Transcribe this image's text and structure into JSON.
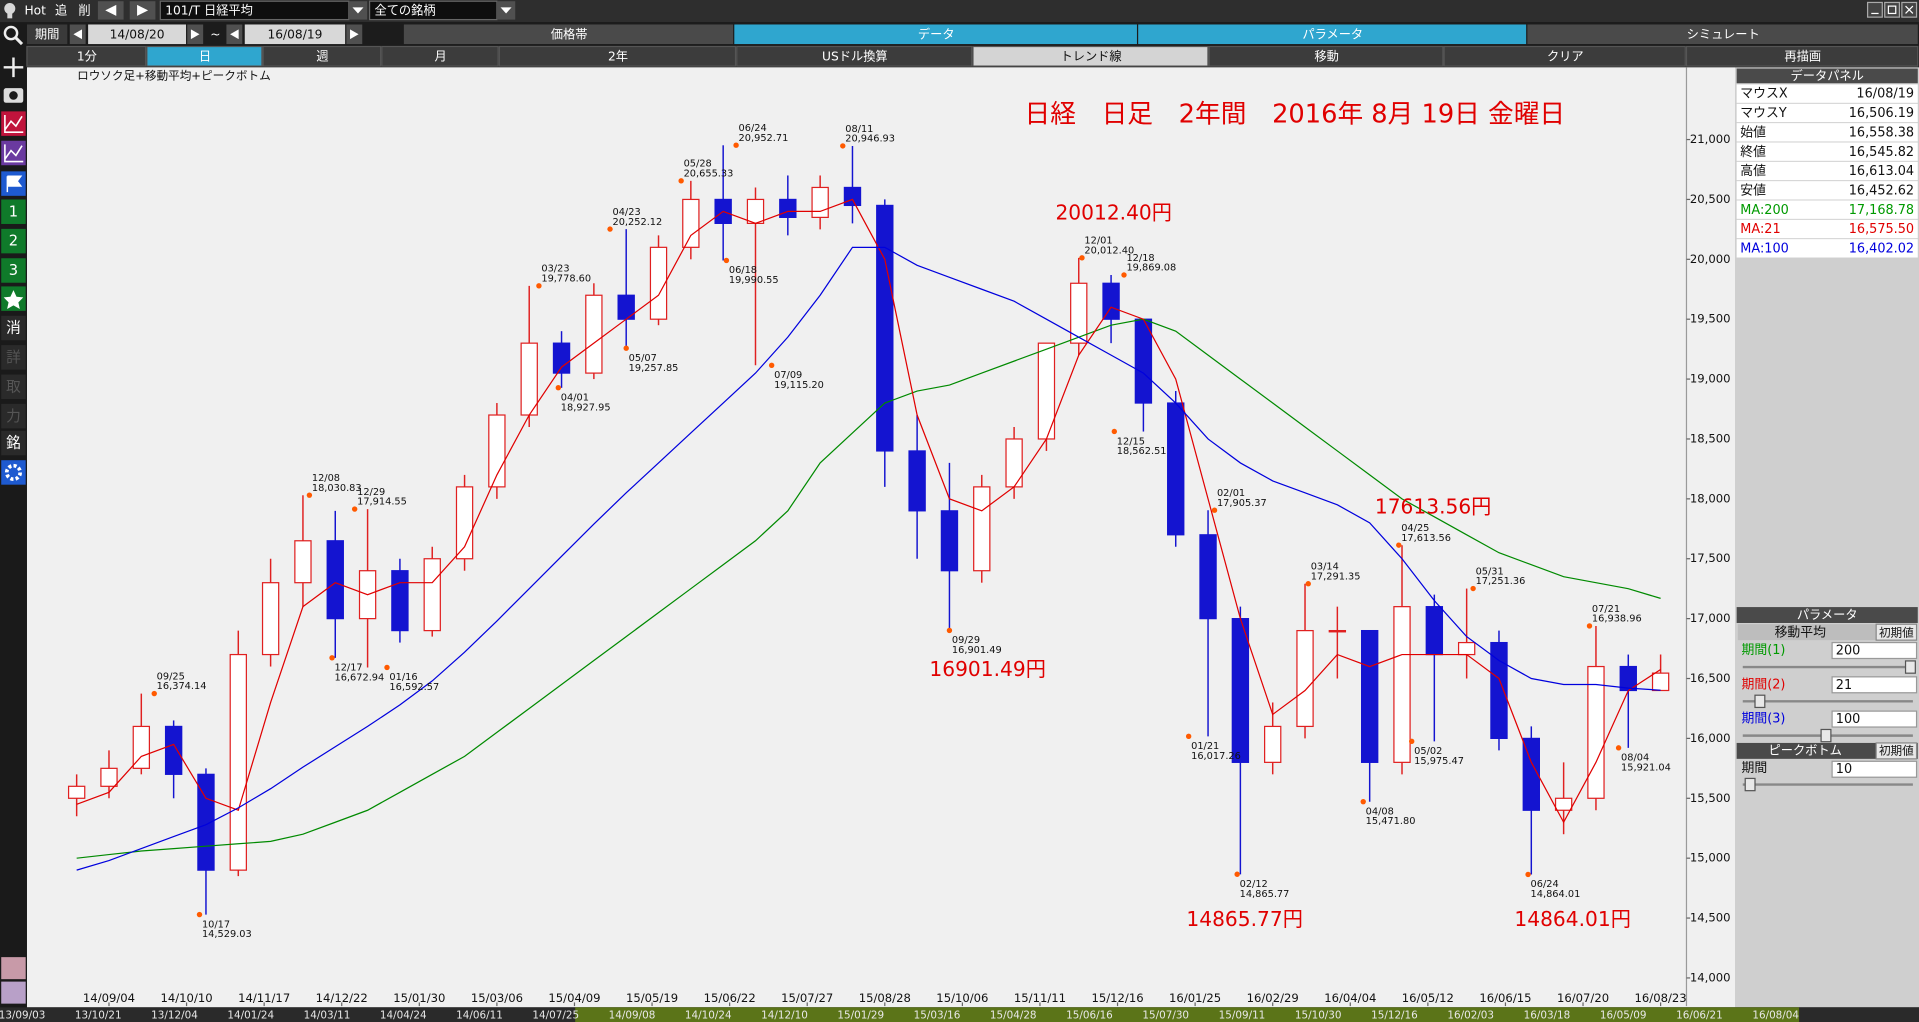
{
  "toolbar": {
    "hot": "Hot",
    "add": "追",
    "delete": "削",
    "symbol": "101/T 日経平均",
    "universe": "全ての銘柄"
  },
  "period": {
    "label": "期間",
    "from": "14/08/20",
    "sep": "~",
    "to": "16/08/19"
  },
  "tabs": [
    "価格帯",
    "データ",
    "パラメータ",
    "シミュレート"
  ],
  "buttons": [
    "1分",
    "日",
    "週",
    "月",
    "2年",
    "USドル換算",
    "トレンド線",
    "移動",
    "クリア",
    "再描画"
  ],
  "sidebar": [
    "1",
    "2",
    "3",
    "消",
    "詳",
    "取",
    "力",
    "銘"
  ],
  "chart_data": {
    "type": "candlestick",
    "title": "日経　日足　2年間　2016年 8月 19日 金曜日",
    "subtitle": "ロウソク足+移動平均+ピークボトム",
    "x": [
      0,
      10,
      20,
      30,
      40,
      50,
      60,
      70,
      80,
      90,
      100,
      110,
      120,
      130,
      140,
      150,
      160,
      170,
      180,
      190,
      200,
      210,
      220,
      230,
      240,
      250,
      260,
      270,
      280,
      290,
      300,
      310,
      320,
      330,
      340,
      350,
      360,
      370,
      380,
      390,
      400,
      410,
      420,
      430,
      440,
      450,
      460,
      470,
      480,
      490
    ],
    "open": [
      15500,
      15600,
      15750,
      16100,
      15700,
      14900,
      16700,
      17300,
      17650,
      17000,
      17400,
      16900,
      17500,
      18100,
      18700,
      19300,
      19050,
      19700,
      19500,
      20100,
      20500,
      20300,
      20500,
      20350,
      20600,
      20450,
      18400,
      17900,
      17400,
      18100,
      18500,
      19300,
      19800,
      19500,
      18800,
      17700,
      17000,
      15800,
      16100,
      16900,
      16900,
      15800,
      17100,
      16700,
      16800,
      16000,
      15400,
      15500,
      16600,
      16400
    ],
    "high": [
      15700,
      15900,
      16374,
      16150,
      15750,
      16900,
      17500,
      18030,
      17900,
      17914,
      17500,
      17600,
      18200,
      18800,
      19778,
      19400,
      19800,
      20252,
      20200,
      20655,
      20952,
      20600,
      20700,
      20700,
      20946,
      20500,
      18700,
      18300,
      18200,
      18600,
      19300,
      20012,
      19869,
      19500,
      18900,
      17905,
      17100,
      16300,
      17291,
      17100,
      16900,
      17613,
      17200,
      17251,
      16900,
      16100,
      15800,
      16938,
      16700,
      16700
    ],
    "low": [
      15350,
      15500,
      15700,
      15500,
      14529,
      14850,
      16600,
      17100,
      16672,
      16592,
      16800,
      16850,
      17400,
      18000,
      18600,
      18927,
      19000,
      19257,
      19450,
      20000,
      19990,
      19115,
      20200,
      20250,
      20300,
      18100,
      17500,
      16901,
      17300,
      18000,
      18400,
      19200,
      19300,
      18562,
      17600,
      16017,
      14865,
      15700,
      16000,
      16500,
      15471,
      15700,
      15975,
      16500,
      15900,
      14864,
      15200,
      15400,
      15921,
      16400
    ],
    "close": [
      15600,
      15750,
      16100,
      15700,
      14900,
      16700,
      17300,
      17650,
      17000,
      17400,
      16900,
      17500,
      18100,
      18700,
      19300,
      19050,
      19700,
      19500,
      20100,
      20500,
      20300,
      20500,
      20350,
      20600,
      20450,
      18400,
      17900,
      17400,
      18100,
      18500,
      19300,
      19800,
      19500,
      18800,
      17700,
      17000,
      15800,
      16100,
      16900,
      16900,
      15800,
      17100,
      16700,
      16800,
      16000,
      15400,
      15500,
      16600,
      16400,
      16545
    ],
    "up_color": "#e02020",
    "down_color": "#1414d0",
    "series": [
      {
        "color": "#008a00",
        "values": [
          15000,
          15030,
          15060,
          15080,
          15100,
          15120,
          15140,
          15200,
          15300,
          15400,
          15550,
          15700,
          15850,
          16050,
          16250,
          16450,
          16650,
          16850,
          17050,
          17250,
          17450,
          17650,
          17900,
          18300,
          18550,
          18800,
          18900,
          18950,
          19050,
          19150,
          19250,
          19350,
          19450,
          19500,
          19400,
          19200,
          19000,
          18800,
          18600,
          18400,
          18200,
          18000,
          17850,
          17700,
          17550,
          17450,
          17350,
          17300,
          17250,
          17169
        ]
      },
      {
        "color": "#e00000",
        "values": [
          15450,
          15550,
          15850,
          15950,
          15500,
          15400,
          16300,
          17100,
          17300,
          17200,
          17300,
          17300,
          17600,
          18200,
          18700,
          19100,
          19300,
          19500,
          19700,
          20200,
          20400,
          20300,
          20400,
          20400,
          20500,
          20000,
          18700,
          18000,
          17900,
          18100,
          18500,
          19200,
          19600,
          19500,
          19000,
          18000,
          17000,
          16200,
          16400,
          16700,
          16600,
          16700,
          16700,
          16700,
          16500,
          15800,
          15300,
          15800,
          16400,
          16575
        ]
      },
      {
        "color": "#0000dd",
        "values": [
          14900,
          14980,
          15080,
          15180,
          15280,
          15420,
          15580,
          15760,
          15930,
          16100,
          16280,
          16480,
          16720,
          16980,
          17250,
          17520,
          17790,
          18050,
          18300,
          18550,
          18800,
          19050,
          19350,
          19700,
          20100,
          20100,
          19950,
          19850,
          19750,
          19650,
          19500,
          19350,
          19200,
          19050,
          18800,
          18500,
          18300,
          18150,
          18050,
          17950,
          17800,
          17500,
          17150,
          16850,
          16650,
          16500,
          16450,
          16450,
          16420,
          16402
        ]
      }
    ],
    "peaks": [
      {
        "date": "09/25",
        "value": 16374.14,
        "label": "16,374.14",
        "x": 24,
        "kind": "peak"
      },
      {
        "date": "10/17",
        "value": 14529.03,
        "label": "14,529.03",
        "x": 38,
        "kind": "bottom"
      },
      {
        "date": "12/08",
        "value": 18030.83,
        "label": "18,030.83",
        "x": 72,
        "kind": "peak"
      },
      {
        "date": "12/17",
        "value": 16672.94,
        "label": "16,672.94",
        "x": 79,
        "kind": "bottom"
      },
      {
        "date": "12/29",
        "value": 17914.55,
        "label": "17,914.55",
        "x": 86,
        "kind": "peak"
      },
      {
        "date": "01/16",
        "value": 16592.57,
        "label": "16,592.57",
        "x": 96,
        "kind": "bottom"
      },
      {
        "date": "03/23",
        "value": 19778.6,
        "label": "19,778.60",
        "x": 143,
        "kind": "peak"
      },
      {
        "date": "04/01",
        "value": 18927.95,
        "label": "18,927.95",
        "x": 149,
        "kind": "bottom"
      },
      {
        "date": "04/23",
        "value": 20252.12,
        "label": "20,252.12",
        "x": 165,
        "kind": "peak"
      },
      {
        "date": "05/07",
        "value": 19257.85,
        "label": "19,257.85",
        "x": 170,
        "kind": "bottom"
      },
      {
        "date": "05/28",
        "value": 20655.33,
        "label": "20,655.33",
        "x": 187,
        "kind": "peak"
      },
      {
        "date": "06/18",
        "value": 19990.55,
        "label": "19,990.55",
        "x": 201,
        "kind": "bottom"
      },
      {
        "date": "06/24",
        "value": 20952.71,
        "label": "20,952.71",
        "x": 204,
        "kind": "peak"
      },
      {
        "date": "07/09",
        "value": 19115.2,
        "label": "19,115.20",
        "x": 215,
        "kind": "bottom"
      },
      {
        "date": "08/11",
        "value": 20946.93,
        "label": "20,946.93",
        "x": 237,
        "kind": "peak"
      },
      {
        "date": "09/29",
        "value": 16901.49,
        "label": "16,901.49",
        "x": 270,
        "kind": "bottom"
      },
      {
        "date": "12/01",
        "value": 20012.4,
        "label": "20,012.40",
        "x": 311,
        "kind": "peak"
      },
      {
        "date": "12/15",
        "value": 18562.51,
        "label": "18,562.51",
        "x": 321,
        "kind": "bottom"
      },
      {
        "date": "12/18",
        "value": 19869.08,
        "label": "19,869.08",
        "x": 324,
        "kind": "peak"
      },
      {
        "date": "01/21",
        "value": 16017.26,
        "label": "16,017.26",
        "x": 344,
        "kind": "bottom"
      },
      {
        "date": "02/01",
        "value": 17905.37,
        "label": "17,905.37",
        "x": 352,
        "kind": "peak"
      },
      {
        "date": "02/12",
        "value": 14865.77,
        "label": "14,865.77",
        "x": 359,
        "kind": "bottom"
      },
      {
        "date": "03/14",
        "value": 17291.35,
        "label": "17,291.35",
        "x": 381,
        "kind": "peak"
      },
      {
        "date": "04/08",
        "value": 15471.8,
        "label": "15,471.80",
        "x": 398,
        "kind": "bottom"
      },
      {
        "date": "04/25",
        "value": 17613.56,
        "label": "17,613.56",
        "x": 409,
        "kind": "peak"
      },
      {
        "date": "05/02",
        "value": 15975.47,
        "label": "15,975.47",
        "x": 413,
        "kind": "bottom"
      },
      {
        "date": "05/31",
        "value": 17251.36,
        "label": "17,251.36",
        "x": 432,
        "kind": "peak"
      },
      {
        "date": "06/24",
        "value": 14864.01,
        "label": "14,864.01",
        "x": 449,
        "kind": "bottom"
      },
      {
        "date": "07/21",
        "value": 16938.96,
        "label": "16,938.96",
        "x": 468,
        "kind": "peak"
      },
      {
        "date": "08/04",
        "value": 15921.04,
        "label": "15,921.04",
        "x": 477,
        "kind": "bottom"
      }
    ],
    "peak_marker_color": "#ff5a00",
    "annotations": [
      {
        "value": 20012.4,
        "label": "20012.40円"
      },
      {
        "value": 16901.49,
        "label": "16901.49円"
      },
      {
        "value": 17613.56,
        "label": "17613.56円"
      },
      {
        "value": 14865.77,
        "label": "14865.77円"
      },
      {
        "value": 14864.01,
        "label": "14864.01円"
      }
    ],
    "annotation_color": "#e00000",
    "xlim": [
      -1,
      498
    ],
    "xticks": [
      {
        "value": 10,
        "label": "14/09/04"
      },
      {
        "value": 34,
        "label": "14/10/10"
      },
      {
        "value": 58,
        "label": "14/11/17"
      },
      {
        "value": 82,
        "label": "14/12/22"
      },
      {
        "value": 106,
        "label": "15/01/30"
      },
      {
        "value": 130,
        "label": "15/03/06"
      },
      {
        "value": 154,
        "label": "15/04/09"
      },
      {
        "value": 178,
        "label": "15/05/19"
      },
      {
        "value": 202,
        "label": "15/06/22"
      },
      {
        "value": 226,
        "label": "15/07/27"
      },
      {
        "value": 250,
        "label": "15/08/28"
      },
      {
        "value": 274,
        "label": "15/10/06"
      },
      {
        "value": 298,
        "label": "15/11/11"
      },
      {
        "value": 322,
        "label": "15/12/16"
      },
      {
        "value": 346,
        "label": "16/01/25"
      },
      {
        "value": 370,
        "label": "16/02/29"
      },
      {
        "value": 394,
        "label": "16/04/04"
      },
      {
        "value": 418,
        "label": "16/05/12"
      },
      {
        "value": 442,
        "label": "16/06/15"
      },
      {
        "value": 466,
        "label": "16/07/20"
      },
      {
        "value": 490,
        "label": "16/08/23"
      }
    ],
    "ylim": [
      13765,
      21603
    ],
    "yticks": [
      {
        "value": 14000,
        "label": "14,000"
      },
      {
        "value": 14500,
        "label": "14,500"
      },
      {
        "value": 15000,
        "label": "15,000"
      },
      {
        "value": 15500,
        "label": "15,500"
      },
      {
        "value": 16000,
        "label": "16,000"
      },
      {
        "value": 16500,
        "label": "16,500"
      },
      {
        "value": 17000,
        "label": "17,000"
      },
      {
        "value": 17500,
        "label": "17,500"
      },
      {
        "value": 18000,
        "label": "18,000"
      },
      {
        "value": 18500,
        "label": "18,500"
      },
      {
        "value": 19000,
        "label": "19,000"
      },
      {
        "value": 19500,
        "label": "19,500"
      },
      {
        "value": 20000,
        "label": "20,000"
      },
      {
        "value": 20500,
        "label": "20,500"
      },
      {
        "value": 21000,
        "label": "21,000"
      }
    ]
  },
  "data_panel": {
    "title": "データパネル",
    "rows": [
      {
        "label": "マウスX",
        "value": "16/08/19",
        "color": "#111111"
      },
      {
        "label": "マウスY",
        "value": "16,506.19",
        "color": "#111111"
      },
      {
        "label": "始値",
        "value": "16,558.38",
        "color": "#111111"
      },
      {
        "label": "終値",
        "value": "16,545.82",
        "color": "#111111"
      },
      {
        "label": "高値",
        "value": "16,613.04",
        "color": "#111111"
      },
      {
        "label": "安値",
        "value": "16,452.62",
        "color": "#111111"
      },
      {
        "label": "MA:200",
        "value": "17,168.78",
        "color": "#009a00"
      },
      {
        "label": "MA:21",
        "value": "16,575.50",
        "color": "#e00000"
      },
      {
        "label": "MA:100",
        "value": "16,402.02",
        "color": "#0000dd"
      }
    ]
  },
  "parameters": {
    "title": "パラメータ",
    "ma_title": "移動平均",
    "reset": "初期値",
    "periods": [
      {
        "label": "期間(1)",
        "value": 200,
        "color": "#009a00"
      },
      {
        "label": "期間(2)",
        "value": 21,
        "color": "#e00000"
      },
      {
        "label": "期間(3)",
        "value": 100,
        "color": "#0000dd"
      }
    ],
    "peak_title": "ピークボトム",
    "peak_period": {
      "label": "期間",
      "value": 10
    }
  },
  "overview_dates": [
    "13/09/03",
    "13/10/21",
    "13/12/04",
    "14/01/24",
    "14/03/11",
    "14/04/24",
    "14/06/11",
    "14/07/25",
    "14/09/08",
    "14/10/24",
    "14/12/10",
    "15/01/29",
    "15/03/16",
    "15/04/28",
    "15/06/16",
    "15/07/30",
    "15/09/11",
    "15/10/30",
    "15/12/16",
    "16/02/03",
    "16/03/18",
    "16/05/09",
    "16/06/21",
    "16/08/04"
  ]
}
